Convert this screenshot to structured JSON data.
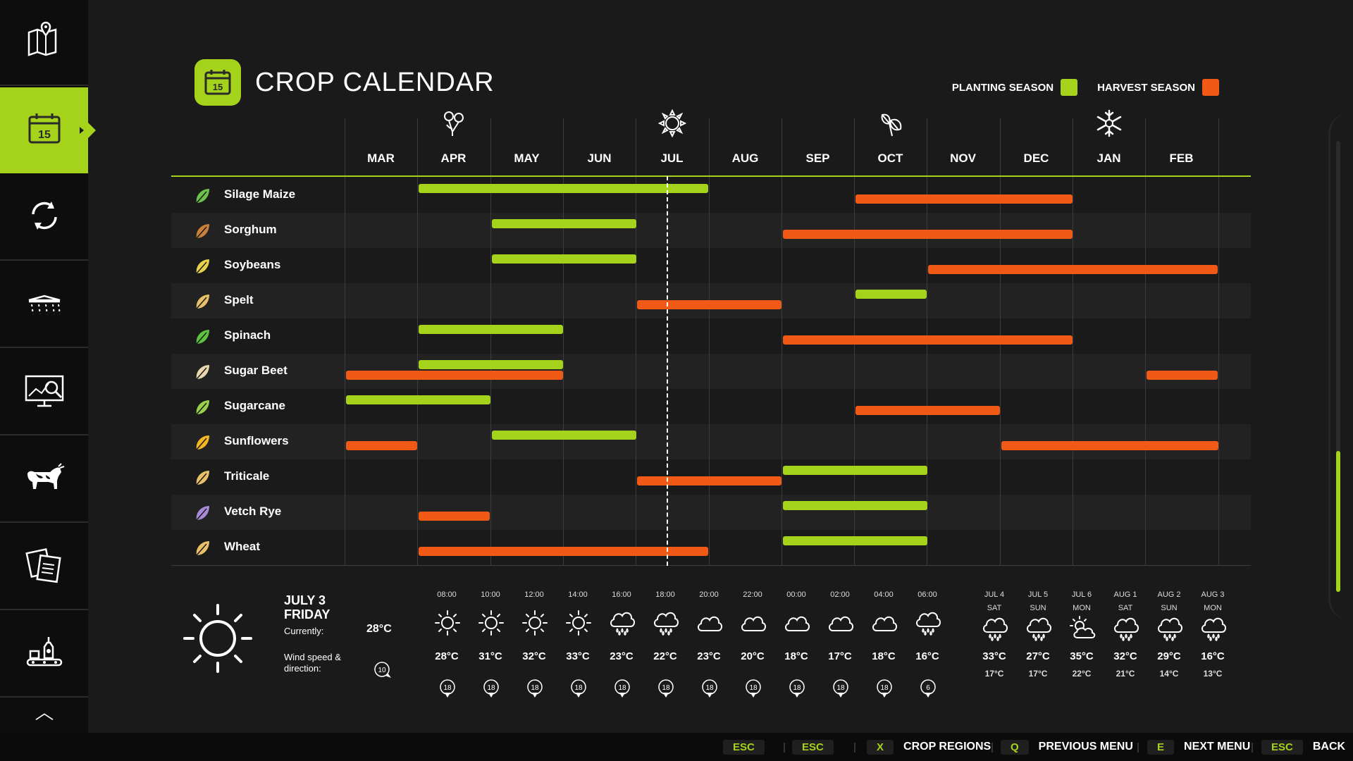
{
  "title": "CROP CALENDAR",
  "header_icon_day": "15",
  "legend": {
    "planting_label": "PLANTING SEASON",
    "harvest_label": "HARVEST SEASON",
    "planting_color": "#a5d21a",
    "harvest_color": "#f15a16"
  },
  "sidebar": {
    "items": [
      {
        "icon": "map-icon",
        "active": false
      },
      {
        "icon": "calendar-icon",
        "active": true,
        "day": "15"
      },
      {
        "icon": "cycle-icon",
        "active": false
      },
      {
        "icon": "weather-icon",
        "active": false
      },
      {
        "icon": "statistics-icon",
        "active": false
      },
      {
        "icon": "cow-icon",
        "active": false
      },
      {
        "icon": "documents-icon",
        "active": false
      },
      {
        "icon": "production-icon",
        "active": false
      }
    ]
  },
  "months": [
    "MAR",
    "APR",
    "MAY",
    "JUN",
    "JUL",
    "AUG",
    "SEP",
    "OCT",
    "NOV",
    "DEC",
    "JAN",
    "FEB"
  ],
  "seasons": [
    {
      "icon": "spring-flower-icon",
      "month_index": 1
    },
    {
      "icon": "summer-sun-icon",
      "month_index": 4
    },
    {
      "icon": "autumn-leaf-icon",
      "month_index": 7
    },
    {
      "icon": "winter-snowflake-icon",
      "month_index": 10
    }
  ],
  "today_marker": {
    "month_position": 4.42
  },
  "crops": [
    {
      "name": "Silage Maize",
      "icon": "maize-icon",
      "color": "#6cc24a",
      "planting": [
        [
          1,
          5
        ]
      ],
      "harvest": [
        [
          7,
          10
        ]
      ]
    },
    {
      "name": "Sorghum",
      "icon": "sorghum-icon",
      "color": "#c9803a",
      "planting": [
        [
          2,
          4
        ]
      ],
      "harvest": [
        [
          6,
          10
        ]
      ]
    },
    {
      "name": "Soybeans",
      "icon": "soybeans-icon",
      "color": "#e8d24a",
      "planting": [
        [
          2,
          4
        ]
      ],
      "harvest": [
        [
          8,
          12
        ]
      ]
    },
    {
      "name": "Spelt",
      "icon": "spelt-icon",
      "color": "#e8c068",
      "planting": [
        [
          7,
          8
        ]
      ],
      "harvest": [
        [
          4,
          6
        ]
      ]
    },
    {
      "name": "Spinach",
      "icon": "spinach-icon",
      "color": "#5cc43e",
      "planting": [
        [
          1,
          3
        ]
      ],
      "harvest": [
        [
          6,
          10
        ]
      ]
    },
    {
      "name": "Sugar Beet",
      "icon": "sugar-beet-icon",
      "color": "#e8d8b0",
      "planting": [
        [
          1,
          3
        ]
      ],
      "harvest": [
        [
          0,
          3
        ],
        [
          11,
          12
        ]
      ]
    },
    {
      "name": "Sugarcane",
      "icon": "sugarcane-icon",
      "color": "#9bd04a",
      "planting": [
        [
          0,
          2
        ]
      ],
      "harvest": [
        [
          7,
          9
        ]
      ]
    },
    {
      "name": "Sunflowers",
      "icon": "sunflower-icon",
      "color": "#f5b822",
      "planting": [
        [
          2,
          4
        ]
      ],
      "harvest": [
        [
          0,
          1
        ],
        [
          9,
          12
        ]
      ]
    },
    {
      "name": "Triticale",
      "icon": "triticale-icon",
      "color": "#e8c068",
      "planting": [
        [
          6,
          8
        ]
      ],
      "harvest": [
        [
          4,
          6
        ]
      ]
    },
    {
      "name": "Vetch Rye",
      "icon": "vetch-rye-icon",
      "color": "#a88ad8",
      "planting": [
        [
          6,
          8
        ]
      ],
      "harvest": [
        [
          1,
          2
        ]
      ]
    },
    {
      "name": "Wheat",
      "icon": "wheat-icon",
      "color": "#e8c068",
      "planting": [
        [
          6,
          8
        ]
      ],
      "harvest": [
        [
          1,
          5
        ]
      ]
    }
  ],
  "weather": {
    "date": "JULY 3",
    "weekday": "FRIDAY",
    "current_label": "Currently:",
    "current_temp": "28°C",
    "wind_label_1": "Wind speed &",
    "wind_label_2": "direction:",
    "current_wind": "10",
    "hourly": [
      {
        "time": "08:00",
        "icon": "sun-icon",
        "temp": "28°C",
        "wind": "18"
      },
      {
        "time": "10:00",
        "icon": "sun-icon",
        "temp": "31°C",
        "wind": "18"
      },
      {
        "time": "12:00",
        "icon": "sun-icon",
        "temp": "32°C",
        "wind": "18"
      },
      {
        "time": "14:00",
        "icon": "sun-icon",
        "temp": "33°C",
        "wind": "18"
      },
      {
        "time": "16:00",
        "icon": "rain-icon",
        "temp": "23°C",
        "wind": "18"
      },
      {
        "time": "18:00",
        "icon": "rain-icon",
        "temp": "22°C",
        "wind": "18"
      },
      {
        "time": "20:00",
        "icon": "cloud-icon",
        "temp": "23°C",
        "wind": "18"
      },
      {
        "time": "22:00",
        "icon": "cloud-icon",
        "temp": "20°C",
        "wind": "18"
      },
      {
        "time": "00:00",
        "icon": "cloud-icon",
        "temp": "18°C",
        "wind": "18"
      },
      {
        "time": "02:00",
        "icon": "cloud-icon",
        "temp": "17°C",
        "wind": "18"
      },
      {
        "time": "04:00",
        "icon": "cloud-icon",
        "temp": "18°C",
        "wind": "18"
      },
      {
        "time": "06:00",
        "icon": "rain-icon",
        "temp": "16°C",
        "wind": "6"
      }
    ],
    "daily": [
      {
        "date": "JUL 4",
        "day": "SAT",
        "icon": "rain-icon",
        "high": "33°C",
        "low": "17°C"
      },
      {
        "date": "JUL 5",
        "day": "SUN",
        "icon": "rain-icon",
        "high": "27°C",
        "low": "17°C"
      },
      {
        "date": "JUL 6",
        "day": "MON",
        "icon": "partly-cloudy-icon",
        "high": "35°C",
        "low": "22°C"
      },
      {
        "date": "AUG 1",
        "day": "SAT",
        "icon": "rain-icon",
        "high": "32°C",
        "low": "21°C"
      },
      {
        "date": "AUG 2",
        "day": "SUN",
        "icon": "rain-icon",
        "high": "29°C",
        "low": "14°C"
      },
      {
        "date": "AUG 3",
        "day": "MON",
        "icon": "rain-icon",
        "high": "16°C",
        "low": "13°C"
      }
    ]
  },
  "footer": {
    "keys": [
      {
        "key": "ESC",
        "label": ""
      },
      {
        "key": "ESC",
        "label": ""
      },
      {
        "key": "X",
        "label": "CROP REGIONS"
      },
      {
        "key": "Q",
        "label": "PREVIOUS MENU"
      },
      {
        "key": "E",
        "label": "NEXT MENU"
      },
      {
        "key": "ESC",
        "label": "BACK"
      }
    ]
  }
}
